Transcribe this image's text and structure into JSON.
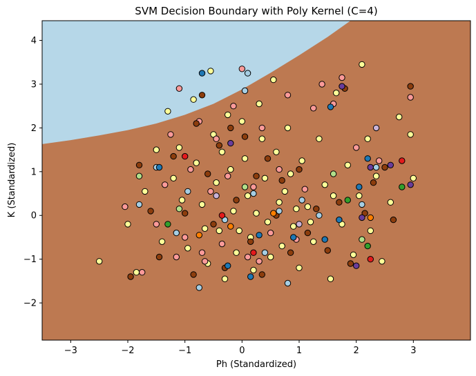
{
  "chart_data": {
    "type": "scatter",
    "title": "SVM Decision Boundary with Poly Kernel (C=4)",
    "xlabel": "Ph (Standardized)",
    "ylabel": "K (Standardized)",
    "xlim": [
      -3.5,
      4.0
    ],
    "ylim": [
      -2.85,
      4.45
    ],
    "xticks": [
      -3,
      -2,
      -1,
      0,
      1,
      2,
      3
    ],
    "yticks": [
      -2,
      -1,
      0,
      1,
      2,
      3,
      4
    ],
    "grid": false,
    "decision_regions": {
      "upper_class_color": "#b6d7e8",
      "lower_class_color": "#bd7951",
      "boundary": [
        [
          -3.5,
          1.63
        ],
        [
          -3.0,
          1.72
        ],
        [
          -2.5,
          1.83
        ],
        [
          -2.0,
          1.95
        ],
        [
          -1.5,
          2.1
        ],
        [
          -1.0,
          2.3
        ],
        [
          -0.5,
          2.55
        ],
        [
          0.0,
          2.88
        ],
        [
          0.5,
          3.26
        ],
        [
          1.0,
          3.66
        ],
        [
          1.5,
          4.08
        ],
        [
          1.9,
          4.45
        ]
      ]
    },
    "point_edge_color": "#000000",
    "classes": [
      {
        "color": "#ffff99",
        "points": [
          [
            -2.5,
            -1.05
          ],
          [
            -2.0,
            -0.2
          ],
          [
            -1.7,
            0.55
          ],
          [
            -1.5,
            1.5
          ],
          [
            -1.3,
            2.38
          ],
          [
            -1.1,
            1.55
          ],
          [
            -1.05,
            0.35
          ],
          [
            -0.95,
            -0.75
          ],
          [
            -0.85,
            2.65
          ],
          [
            -0.8,
            1.2
          ],
          [
            -0.7,
            0.25
          ],
          [
            -0.6,
            -1.1
          ],
          [
            -0.55,
            3.3
          ],
          [
            -0.5,
            1.85
          ],
          [
            -0.45,
            0.75
          ],
          [
            -0.4,
            -0.35
          ],
          [
            -0.3,
            -1.45
          ],
          [
            -0.25,
            2.3
          ],
          [
            -0.2,
            1.05
          ],
          [
            -0.15,
            0.1
          ],
          [
            -0.1,
            -0.85
          ],
          [
            0.0,
            2.15
          ],
          [
            0.05,
            1.3
          ],
          [
            0.1,
            0.45
          ],
          [
            0.15,
            -0.5
          ],
          [
            0.2,
            -1.25
          ],
          [
            0.3,
            2.55
          ],
          [
            0.35,
            1.75
          ],
          [
            0.4,
            0.85
          ],
          [
            0.45,
            -0.15
          ],
          [
            0.5,
            -0.95
          ],
          [
            0.55,
            3.1
          ],
          [
            0.6,
            1.45
          ],
          [
            0.65,
            0.3
          ],
          [
            0.7,
            -0.7
          ],
          [
            0.8,
            2.0
          ],
          [
            0.85,
            0.95
          ],
          [
            0.9,
            -0.25
          ],
          [
            1.0,
            -1.2
          ],
          [
            1.05,
            1.25
          ],
          [
            1.15,
            0.2
          ],
          [
            1.25,
            -0.6
          ],
          [
            1.35,
            1.75
          ],
          [
            1.45,
            0.7
          ],
          [
            1.55,
            -1.45
          ],
          [
            1.65,
            2.8
          ],
          [
            1.75,
            -0.2
          ],
          [
            1.85,
            1.15
          ],
          [
            1.95,
            -0.9
          ],
          [
            2.05,
            0.45
          ],
          [
            2.1,
            3.45
          ],
          [
            2.2,
            1.75
          ],
          [
            2.25,
            -0.35
          ],
          [
            2.35,
            0.9
          ],
          [
            2.45,
            -1.05
          ],
          [
            2.6,
            0.3
          ],
          [
            2.75,
            2.25
          ],
          [
            2.95,
            1.85
          ],
          [
            3.0,
            0.85
          ],
          [
            -1.85,
            -1.3
          ],
          [
            -1.4,
            -0.6
          ],
          [
            -1.2,
            0.85
          ],
          [
            -0.35,
            1.45
          ],
          [
            0.25,
            0.05
          ],
          [
            0.75,
            0.55
          ],
          [
            1.2,
            -0.15
          ],
          [
            1.6,
            0.45
          ],
          [
            -0.65,
            -0.3
          ],
          [
            -0.05,
            -0.35
          ],
          [
            0.95,
            0.15
          ]
        ]
      },
      {
        "color": "#fb9a99",
        "points": [
          [
            -2.05,
            0.2
          ],
          [
            -1.75,
            -1.3
          ],
          [
            -1.5,
            -0.2
          ],
          [
            -1.35,
            0.7
          ],
          [
            -1.25,
            1.85
          ],
          [
            -1.1,
            2.9
          ],
          [
            -1.0,
            -0.5
          ],
          [
            -0.9,
            1.05
          ],
          [
            -0.75,
            2.15
          ],
          [
            -0.65,
            -1.05
          ],
          [
            -0.55,
            0.55
          ],
          [
            -0.45,
            1.75
          ],
          [
            -0.35,
            -0.65
          ],
          [
            -0.25,
            0.9
          ],
          [
            -0.15,
            2.5
          ],
          [
            0.0,
            3.35
          ],
          [
            0.1,
            -0.95
          ],
          [
            0.2,
            0.65
          ],
          [
            0.35,
            2.0
          ],
          [
            0.5,
            -0.4
          ],
          [
            0.65,
            1.05
          ],
          [
            0.8,
            2.75
          ],
          [
            0.95,
            -0.55
          ],
          [
            1.1,
            0.6
          ],
          [
            1.25,
            2.45
          ],
          [
            1.4,
            3.0
          ],
          [
            1.6,
            2.55
          ],
          [
            1.75,
            3.15
          ],
          [
            2.0,
            1.55
          ],
          [
            2.4,
            1.25
          ],
          [
            2.95,
            2.7
          ],
          [
            -0.7,
            -0.85
          ],
          [
            -1.15,
            -0.95
          ],
          [
            0.3,
            -1.05
          ]
        ]
      },
      {
        "color": "#8c3d0d",
        "points": [
          [
            -1.95,
            -1.4
          ],
          [
            -1.8,
            1.15
          ],
          [
            -1.6,
            0.1
          ],
          [
            -1.45,
            -0.95
          ],
          [
            -1.2,
            1.35
          ],
          [
            -1.0,
            0.05
          ],
          [
            -0.85,
            -1.35
          ],
          [
            -0.8,
            2.1
          ],
          [
            -0.7,
            2.75
          ],
          [
            -0.6,
            0.95
          ],
          [
            -0.5,
            -0.2
          ],
          [
            -0.4,
            1.6
          ],
          [
            -0.3,
            -1.2
          ],
          [
            -0.2,
            2.0
          ],
          [
            -0.1,
            0.35
          ],
          [
            0.05,
            1.8
          ],
          [
            0.15,
            -0.6
          ],
          [
            0.25,
            0.9
          ],
          [
            0.35,
            -1.35
          ],
          [
            0.45,
            1.3
          ],
          [
            0.6,
            0.0
          ],
          [
            0.7,
            0.8
          ],
          [
            0.85,
            -0.85
          ],
          [
            1.0,
            1.05
          ],
          [
            1.15,
            -0.4
          ],
          [
            1.3,
            0.15
          ],
          [
            1.5,
            -0.8
          ],
          [
            1.7,
            0.3
          ],
          [
            1.9,
            -1.1
          ],
          [
            2.15,
            0.05
          ],
          [
            2.3,
            0.75
          ],
          [
            2.5,
            1.1
          ],
          [
            2.65,
            -0.1
          ],
          [
            2.95,
            2.95
          ],
          [
            1.8,
            2.9
          ]
        ]
      },
      {
        "color": "#a6cee3",
        "points": [
          [
            -1.8,
            0.25
          ],
          [
            -1.5,
            1.1
          ],
          [
            -1.15,
            -0.4
          ],
          [
            -0.75,
            -1.65
          ],
          [
            -0.3,
            -0.1
          ],
          [
            0.05,
            2.85
          ],
          [
            0.2,
            0.5
          ],
          [
            0.4,
            -0.85
          ],
          [
            0.65,
            0.1
          ],
          [
            0.8,
            -1.55
          ],
          [
            1.05,
            0.35
          ],
          [
            1.35,
            0.0
          ],
          [
            2.1,
            0.25
          ],
          [
            2.35,
            1.1
          ],
          [
            -0.95,
            0.55
          ],
          [
            0.1,
            3.25
          ]
        ]
      },
      {
        "color": "#1f78b4",
        "points": [
          [
            -1.45,
            1.1
          ],
          [
            -0.7,
            3.25
          ],
          [
            -0.25,
            -1.15
          ],
          [
            0.15,
            -1.4
          ],
          [
            0.3,
            -0.45
          ],
          [
            0.9,
            -0.5
          ],
          [
            1.55,
            2.48
          ],
          [
            1.7,
            -0.1
          ],
          [
            2.05,
            0.65
          ],
          [
            2.2,
            1.3
          ],
          [
            1.45,
            -0.55
          ]
        ]
      },
      {
        "color": "#ff7f00",
        "points": [
          [
            -0.75,
            -0.45
          ],
          [
            -0.2,
            -0.25
          ],
          [
            2.25,
            -0.05
          ],
          [
            0.55,
            0.05
          ]
        ]
      },
      {
        "color": "#e31a1c",
        "points": [
          [
            -1.0,
            1.35
          ],
          [
            0.2,
            -0.85
          ],
          [
            2.25,
            -1.0
          ],
          [
            2.8,
            1.25
          ],
          [
            -0.35,
            0.0
          ]
        ]
      },
      {
        "color": "#b2df8a",
        "points": [
          [
            -1.8,
            0.9
          ],
          [
            -1.1,
            0.15
          ],
          [
            0.05,
            0.65
          ],
          [
            1.6,
            0.95
          ],
          [
            2.1,
            -0.55
          ]
        ]
      },
      {
        "color": "#33a02c",
        "points": [
          [
            1.85,
            0.35
          ],
          [
            2.2,
            -0.7
          ],
          [
            2.8,
            0.65
          ],
          [
            -1.3,
            -0.2
          ]
        ]
      },
      {
        "color": "#6a3d9a",
        "points": [
          [
            1.75,
            2.95
          ],
          [
            2.1,
            -0.05
          ],
          [
            2.25,
            1.1
          ],
          [
            2.6,
            1.15
          ],
          [
            2.95,
            0.7
          ],
          [
            2.0,
            -1.15
          ],
          [
            -0.2,
            1.65
          ]
        ]
      },
      {
        "color": "#cab2d6",
        "points": [
          [
            2.35,
            2.0
          ],
          [
            1.0,
            -0.2
          ],
          [
            -0.45,
            0.45
          ]
        ]
      }
    ]
  }
}
